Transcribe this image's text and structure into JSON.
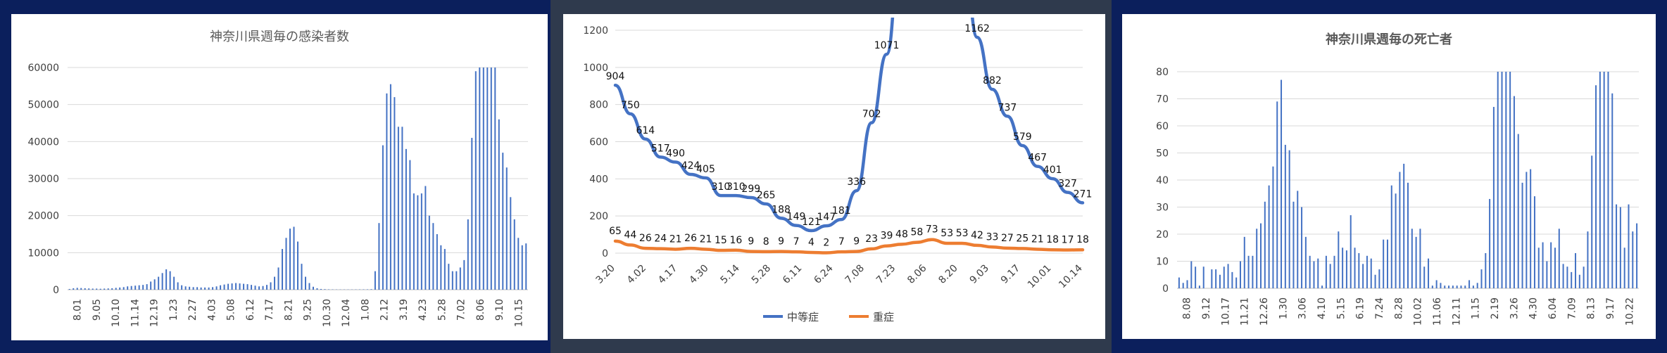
{
  "chart_data": [
    {
      "type": "bar",
      "title": "神奈川県週毎の感染者数",
      "ylim": [
        0,
        60000
      ],
      "yticks": [
        "0",
        "10000",
        "20000",
        "30000",
        "40000",
        "50000",
        "60000"
      ],
      "xticks": [
        "8.01",
        "9.05",
        "10.10",
        "11.14",
        "12.19",
        "1.23",
        "2.27",
        "4.03",
        "5.08",
        "6.12",
        "7.17",
        "8.21",
        "9.25",
        "10.30",
        "12.04",
        "1.08",
        "2.12",
        "3.19",
        "4.23",
        "5.28",
        "7.02",
        "8.06",
        "9.10",
        "10.15"
      ],
      "values": [
        200,
        400,
        500,
        450,
        400,
        350,
        300,
        300,
        250,
        300,
        350,
        400,
        500,
        600,
        700,
        900,
        1000,
        1100,
        1200,
        1300,
        1500,
        2200,
        2800,
        3500,
        4500,
        5500,
        5000,
        3500,
        2000,
        1200,
        900,
        800,
        700,
        700,
        600,
        600,
        600,
        700,
        900,
        1200,
        1400,
        1600,
        1700,
        1800,
        1700,
        1600,
        1500,
        1300,
        1100,
        900,
        1000,
        1300,
        2000,
        3500,
        6000,
        11000,
        14000,
        16500,
        17000,
        13000,
        7000,
        3500,
        1800,
        800,
        400,
        200,
        150,
        100,
        80,
        60,
        60,
        60,
        60,
        60,
        70,
        80,
        90,
        100,
        150,
        5000,
        18000,
        39000,
        53000,
        55500,
        52000,
        44000,
        44000,
        38000,
        35000,
        26000,
        25500,
        26000,
        28000,
        20000,
        18000,
        15000,
        12000,
        11000,
        7000,
        5000,
        5000,
        6000,
        8000,
        19000,
        41000,
        59000,
        60000,
        60000,
        60000,
        60000,
        60000,
        46000,
        37000,
        33000,
        25000,
        19000,
        14000,
        12000,
        12500
      ]
    },
    {
      "type": "line",
      "title": "",
      "ylim": [
        0,
        1200
      ],
      "yticks": [
        "0",
        "200",
        "400",
        "600",
        "800",
        "1000",
        "1200"
      ],
      "xticks": [
        "3.20",
        "4.02",
        "4.17",
        "4.30",
        "5.14",
        "5.28",
        "6.11",
        "6.24",
        "7.08",
        "7.23",
        "8.06",
        "8.20",
        "9.03",
        "9.17",
        "10.01",
        "10.14"
      ],
      "series": [
        {
          "name": "中等症",
          "color": "#4472c4",
          "values": [
            904,
            750,
            614,
            517,
            490,
            424,
            405,
            310,
            310,
            299,
            265,
            188,
            149,
            121,
            147,
            181,
            336,
            702,
            1071,
            null,
            null,
            null,
            null,
            null,
            1162,
            882,
            737,
            579,
            467,
            401,
            327,
            271
          ],
          "labels": [
            "904",
            "750",
            "614",
            "517",
            "490",
            "424",
            "405",
            "310",
            "310",
            "299",
            "265",
            "188",
            "149",
            "121",
            "147",
            "181",
            "336",
            "702",
            "1071",
            "",
            "",
            "",
            "",
            "",
            "1162",
            "882",
            "737",
            "579",
            "467",
            "401",
            "327",
            "271"
          ]
        },
        {
          "name": "重症",
          "color": "#ed7d31",
          "values": [
            65,
            44,
            26,
            24,
            21,
            26,
            21,
            15,
            16,
            9,
            8,
            9,
            7,
            4,
            2,
            7,
            9,
            23,
            39,
            48,
            58,
            73,
            53,
            53,
            42,
            33,
            27,
            25,
            21,
            18,
            17,
            18
          ],
          "labels": [
            "65",
            "44",
            "26",
            "24",
            "21",
            "26",
            "21",
            "15",
            "16",
            "9",
            "8",
            "9",
            "7",
            "4",
            "2",
            "7",
            "9",
            "23",
            "39",
            "48",
            "58",
            "73",
            "53",
            "53",
            "42",
            "33",
            "27",
            "25",
            "21",
            "18",
            "17",
            "18"
          ]
        }
      ]
    },
    {
      "type": "bar",
      "title": "神奈川県週毎の死亡者",
      "ylim": [
        0,
        80
      ],
      "yticks": [
        "0",
        "10",
        "20",
        "30",
        "40",
        "50",
        "60",
        "70",
        "80"
      ],
      "xticks": [
        "8.08",
        "9.12",
        "10.17",
        "11.21",
        "12.26",
        "1.30",
        "3.06",
        "4.10",
        "5.15",
        "6.19",
        "7.24",
        "8.28",
        "10.02",
        "11.06",
        "12.11",
        "1.15",
        "2.19",
        "3.26",
        "4.30",
        "6.04",
        "7.09",
        "8.13",
        "9.17",
        "10.22"
      ],
      "values": [
        4,
        2,
        3,
        10,
        8,
        1,
        8,
        0,
        7,
        7,
        5,
        8,
        9,
        6,
        4,
        10,
        19,
        12,
        12,
        22,
        24,
        32,
        38,
        45,
        69,
        77,
        53,
        51,
        32,
        36,
        30,
        19,
        12,
        10,
        11,
        1,
        12,
        9,
        12,
        21,
        15,
        14,
        27,
        15,
        13,
        9,
        12,
        11,
        5,
        7,
        18,
        18,
        38,
        35,
        43,
        46,
        39,
        22,
        19,
        22,
        8,
        11,
        1,
        3,
        2,
        1,
        1,
        1,
        1,
        1,
        1,
        3,
        1,
        2,
        7,
        13,
        33,
        67,
        80,
        80,
        80,
        80,
        71,
        57,
        39,
        43,
        44,
        34,
        15,
        17,
        10,
        17,
        15,
        22,
        9,
        8,
        6,
        13,
        5,
        8,
        21,
        49,
        75,
        80,
        80,
        80,
        72,
        31,
        30,
        15,
        31,
        21,
        24
      ]
    }
  ]
}
